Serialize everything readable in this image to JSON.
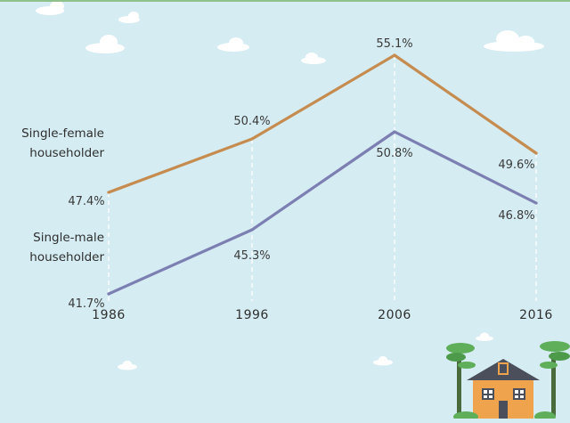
{
  "chart_data": {
    "type": "line",
    "x": [
      1986,
      1996,
      2006,
      2016
    ],
    "categories": [
      "1986",
      "1996",
      "2006",
      "2016"
    ],
    "series": [
      {
        "name": "Single-female householder",
        "name_lines": [
          "Single-female",
          "householder"
        ],
        "values": [
          47.4,
          50.4,
          55.1,
          49.6
        ],
        "labels": [
          "47.4%",
          "50.4%",
          "55.1%",
          "49.6%"
        ],
        "color": "#c68c4f"
      },
      {
        "name": "Single-male householder",
        "name_lines": [
          "Single-male",
          "householder"
        ],
        "values": [
          41.7,
          45.3,
          50.8,
          46.8
        ],
        "labels": [
          "41.7%",
          "45.3%",
          "50.8%",
          "46.8%"
        ],
        "color": "#7c7fb2"
      }
    ],
    "title": "",
    "xlabel": "",
    "ylabel": "",
    "ylim": [
      40,
      57
    ],
    "grid": false,
    "legend": "left (inline labels)"
  },
  "colors": {
    "background": "#d4ecf2",
    "ground": "#8fc18b",
    "house_wall": "#f0a34d",
    "house_roof": "#4b4f5c",
    "tree": "#5fae5a",
    "cloud": "#ffffff"
  },
  "decoration": {
    "illustration": "house-with-trees"
  }
}
